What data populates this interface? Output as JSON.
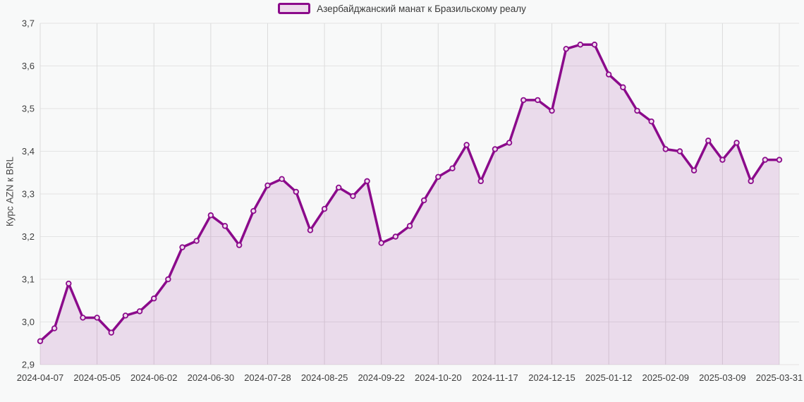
{
  "chart_data": {
    "type": "area",
    "legend": "Азербайджанский манат к Бразильскому реалу",
    "ylabel": "Курс AZN к BRL",
    "legend_position": "top-center",
    "grid": true,
    "ylim": [
      2.9,
      3.7
    ],
    "yticks": [
      "2,9",
      "3,0",
      "3,1",
      "3,2",
      "3,3",
      "3,4",
      "3,5",
      "3,6",
      "3,7"
    ],
    "xticks": [
      "2024-04-07",
      "2024-05-05",
      "2024-06-02",
      "2024-06-30",
      "2024-07-28",
      "2024-08-25",
      "2024-09-22",
      "2024-10-20",
      "2024-11-17",
      "2024-12-15",
      "2025-01-12",
      "2025-02-09",
      "2025-03-09",
      "2025-03-31"
    ],
    "xtick_every": 4,
    "x": [
      "2024-04-07",
      "2024-04-14",
      "2024-04-21",
      "2024-04-28",
      "2024-05-05",
      "2024-05-12",
      "2024-05-19",
      "2024-05-26",
      "2024-06-02",
      "2024-06-09",
      "2024-06-16",
      "2024-06-23",
      "2024-06-30",
      "2024-07-07",
      "2024-07-14",
      "2024-07-21",
      "2024-07-28",
      "2024-08-04",
      "2024-08-11",
      "2024-08-18",
      "2024-08-25",
      "2024-09-01",
      "2024-09-08",
      "2024-09-15",
      "2024-09-22",
      "2024-09-29",
      "2024-10-06",
      "2024-10-13",
      "2024-10-20",
      "2024-10-27",
      "2024-11-03",
      "2024-11-10",
      "2024-11-17",
      "2024-11-24",
      "2024-12-01",
      "2024-12-08",
      "2024-12-15",
      "2024-12-22",
      "2024-12-29",
      "2025-01-05",
      "2025-01-12",
      "2025-01-19",
      "2025-01-26",
      "2025-02-02",
      "2025-02-09",
      "2025-02-16",
      "2025-02-23",
      "2025-03-02",
      "2025-03-09",
      "2025-03-16",
      "2025-03-23",
      "2025-03-30",
      "2025-03-31"
    ],
    "values": [
      2.955,
      2.985,
      3.09,
      3.01,
      3.01,
      2.975,
      3.015,
      3.025,
      3.055,
      3.1,
      3.175,
      3.19,
      3.25,
      3.225,
      3.18,
      3.26,
      3.32,
      3.335,
      3.305,
      3.215,
      3.265,
      3.315,
      3.295,
      3.33,
      3.185,
      3.2,
      3.225,
      3.285,
      3.34,
      3.36,
      3.415,
      3.33,
      3.405,
      3.42,
      3.52,
      3.52,
      3.495,
      3.64,
      3.65,
      3.65,
      3.58,
      3.55,
      3.495,
      3.47,
      3.405,
      3.4,
      3.355,
      3.425,
      3.38,
      3.42,
      3.33,
      3.38,
      3.38
    ],
    "colors": {
      "line": "#8b0a8b",
      "area_fill": "rgba(139,10,139,0.12)",
      "marker_fill": "#efdfee",
      "grid_h": "#e4e4e4",
      "grid_v": "#dbdbdb",
      "axis_text": "#3f3f3f",
      "background": "#f8f9f9"
    }
  }
}
